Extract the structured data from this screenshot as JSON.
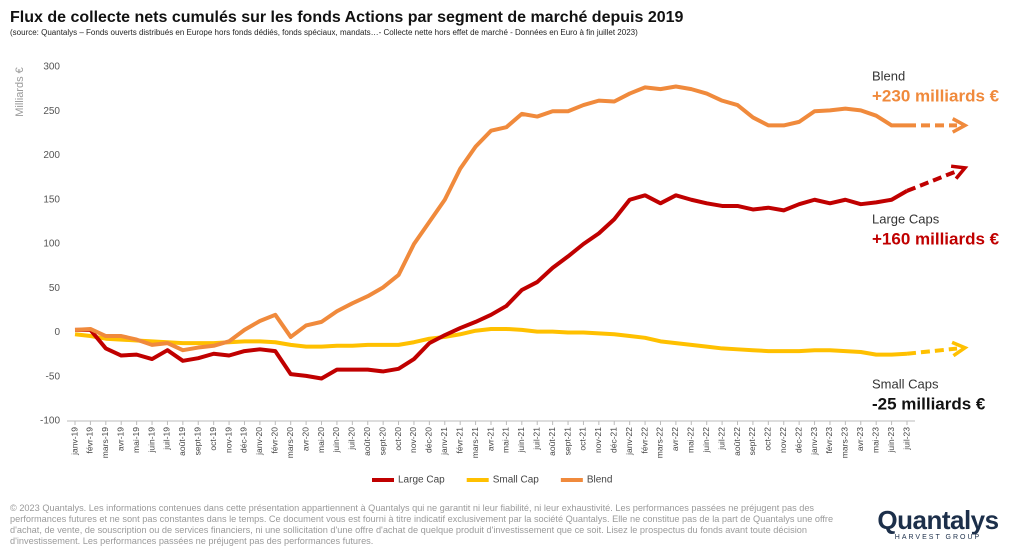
{
  "chart_data": {
    "type": "line",
    "title": "Flux de collecte nets cumulés sur les fonds Actions par segment de marché depuis 2019",
    "subtitle": "(source: Quantalys – Fonds ouverts distribués en Europe hors fonds dédiés, fonds spéciaux, mandats…- Collecte nette hors effet de marché - Données en Euro à fin juillet 2023)",
    "y_label": "Milliards €",
    "categories": [
      "janv-19",
      "févr-19",
      "mars-19",
      "avr-19",
      "mai-19",
      "juin-19",
      "juil-19",
      "août-19",
      "sept-19",
      "oct-19",
      "nov-19",
      "déc-19",
      "janv-20",
      "févr-20",
      "mars-20",
      "avr-20",
      "mai-20",
      "juin-20",
      "juil-20",
      "août-20",
      "sept-20",
      "oct-20",
      "nov-20",
      "déc-20",
      "janv-21",
      "févr-21",
      "mars-21",
      "avr-21",
      "mai-21",
      "juin-21",
      "juil-21",
      "août-21",
      "sept-21",
      "oct-21",
      "nov-21",
      "déc-21",
      "janv-22",
      "févr-22",
      "mars-22",
      "avr-22",
      "mai-22",
      "juin-22",
      "juil-22",
      "août-22",
      "sept-22",
      "oct-22",
      "nov-22",
      "déc-22",
      "janv-23",
      "févr-23",
      "mars-23",
      "avr-23",
      "mai-23",
      "juin-23",
      "juil-23"
    ],
    "series": [
      {
        "name": "Large Cap",
        "color": "#c00000",
        "values": [
          3,
          3,
          -18,
          -26,
          -25,
          -30,
          -20,
          -32,
          -29,
          -24,
          -26,
          -21,
          -19,
          -21,
          -47,
          -49,
          -52,
          -42,
          -42,
          -42,
          -44,
          -41,
          -30,
          -12,
          -3,
          5,
          12,
          20,
          30,
          48,
          57,
          73,
          86,
          100,
          112,
          128,
          150,
          155,
          146,
          155,
          150,
          146,
          143,
          143,
          139,
          141,
          138,
          145,
          150,
          146,
          150,
          145,
          147,
          150,
          160
        ]
      },
      {
        "name": "Small Cap",
        "color": "#ffc000",
        "values": [
          -2,
          -4,
          -7,
          -8,
          -9,
          -10,
          -11,
          -12,
          -12,
          -12,
          -11,
          -10,
          -10,
          -11,
          -14,
          -16,
          -16,
          -15,
          -15,
          -14,
          -14,
          -14,
          -11,
          -7,
          -5,
          -2,
          2,
          4,
          4,
          3,
          1,
          1,
          0,
          0,
          -1,
          -2,
          -4,
          -6,
          -10,
          -12,
          -14,
          -16,
          -18,
          -19,
          -20,
          -21,
          -21,
          -21,
          -20,
          -20,
          -21,
          -22,
          -25,
          -25,
          -24
        ]
      },
      {
        "name": "Blend",
        "color": "#f08a3c",
        "values": [
          3,
          4,
          -4,
          -4,
          -8,
          -14,
          -12,
          -20,
          -17,
          -15,
          -10,
          3,
          13,
          20,
          -5,
          8,
          12,
          24,
          33,
          41,
          51,
          65,
          100,
          125,
          150,
          185,
          210,
          228,
          232,
          247,
          244,
          250,
          250,
          257,
          262,
          261,
          270,
          277,
          275,
          278,
          275,
          270,
          262,
          257,
          243,
          234,
          234,
          238,
          250,
          251,
          253,
          251,
          245,
          234,
          234
        ]
      }
    ],
    "ylim": [
      -100,
      300
    ],
    "yticks": [
      -100,
      -50,
      0,
      50,
      100,
      150,
      200,
      250,
      300
    ],
    "grid": false,
    "legend": "bottom",
    "annotations": [
      {
        "text": "Blend",
        "color": "#333333"
      },
      {
        "text": "+230 milliards €",
        "color": "#f08a3c"
      },
      {
        "text": "Large Caps",
        "color": "#333333"
      },
      {
        "text": "+160 milliards €",
        "color": "#c00000"
      },
      {
        "text": "Small Caps",
        "color": "#333333"
      },
      {
        "text": "-25 milliards €",
        "color": "#111111"
      }
    ]
  },
  "disclaimer": "© 2023 Quantalys. Les informations contenues dans cette présentation appartiennent à Quantalys qui ne garantit ni leur fiabilité, ni leur exhaustivité. Les performances passées ne préjugent pas des performances futures et ne sont pas constantes dans le temps. Ce document vous est fourni à titre indicatif exclusivement par la société Quantalys. Elle ne constitue pas de la part de Quantalys une offre d'achat, de vente, de souscription ou de services financiers, ni une sollicitation d'une offre d'achat de quelque produit d'investissement que ce soit. Lisez le prospectus du fonds avant toute décision d'investissement. Les performances passées ne préjugent pas des performances futures.",
  "logo": {
    "name": "Quantalys",
    "tagline": "HARVEST GROUP"
  }
}
